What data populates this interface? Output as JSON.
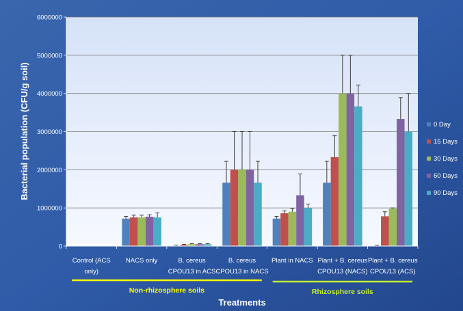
{
  "chart_data": {
    "type": "bar",
    "title": "",
    "xlabel": "Treatments",
    "ylabel": "Bacterial population (CFU/g soil)",
    "ylim": [
      0,
      6000000
    ],
    "yticks": [
      "0",
      "1000000",
      "2000000",
      "3000000",
      "4000000",
      "5000000",
      "6000000"
    ],
    "ytick_values": [
      0,
      1000000,
      2000000,
      3000000,
      4000000,
      5000000,
      6000000
    ],
    "grid": true,
    "legend_position": "right",
    "categories": [
      [
        "Control (ACS",
        "only)"
      ],
      [
        "NACS only"
      ],
      [
        "B. cereus",
        "CPOU13 in ACS"
      ],
      [
        "B. cereus",
        "CPOU13 in NACS"
      ],
      [
        "Plant in NACS"
      ],
      [
        "Plant + B. cereus",
        "CPOU13 (NACS)"
      ],
      [
        "Plant + B. cereus",
        "CPOU13 (ACS)"
      ]
    ],
    "series": [
      {
        "name": "0 Day",
        "color": "#4f81bd",
        "values": [
          0,
          720000,
          10000,
          1660000,
          720000,
          1660000,
          10000
        ],
        "errors": [
          0,
          60000,
          15000,
          560000,
          60000,
          560000,
          10000
        ]
      },
      {
        "name": "15 Days",
        "color": "#c0504d",
        "values": [
          0,
          750000,
          30000,
          2000000,
          860000,
          2330000,
          780000
        ],
        "errors": [
          0,
          60000,
          15000,
          1000000,
          60000,
          560000,
          120000
        ]
      },
      {
        "name": "30 Days",
        "color": "#9bbb59",
        "values": [
          0,
          750000,
          50000,
          2000000,
          900000,
          4000000,
          980000
        ],
        "errors": [
          0,
          60000,
          15000,
          1000000,
          80000,
          1000000,
          20000
        ]
      },
      {
        "name": "60 Days",
        "color": "#8064a2",
        "values": [
          0,
          770000,
          50000,
          2000000,
          1330000,
          4000000,
          3330000
        ],
        "errors": [
          0,
          50000,
          15000,
          1000000,
          560000,
          1000000,
          560000
        ]
      },
      {
        "name": "90 Days",
        "color": "#4bacc6",
        "values": [
          0,
          750000,
          50000,
          1660000,
          1000000,
          3660000,
          3000000
        ],
        "errors": [
          0,
          120000,
          15000,
          560000,
          100000,
          560000,
          1000000
        ]
      }
    ],
    "annotations": {
      "groups": [
        {
          "label": "Non-rhizosphere soils",
          "categories": [
            0,
            3
          ],
          "color": "#ffff00"
        },
        {
          "label": "Rhizosphere soils",
          "categories": [
            4,
            6
          ],
          "color": "#c6ef2e"
        }
      ]
    }
  }
}
